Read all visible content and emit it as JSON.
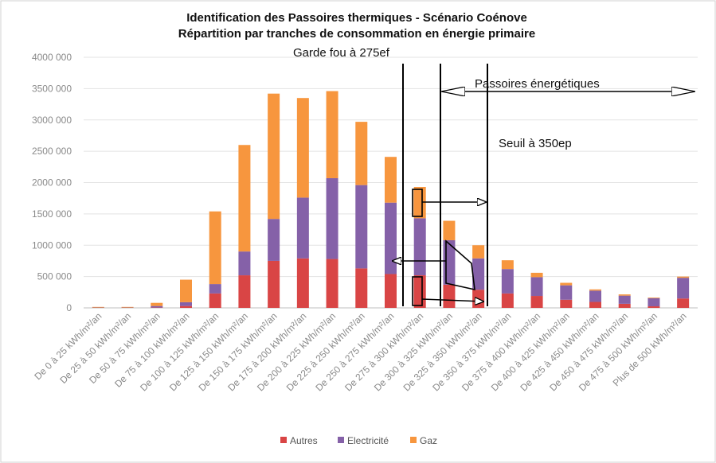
{
  "chart_data": {
    "type": "bar",
    "stacked": true,
    "title": "Identification des Passoires thermiques - Scénario Coénove",
    "subtitle": "Répartition par tranches de consommation en énergie primaire",
    "categories": [
      "De 0 à 25 kWh/m²/an",
      "De 25 à 50 kWh/m²/an",
      "De 50 à 75 kWh/m²/an",
      "De 75 à 100 kWh/m²/an",
      "De 100 à 125 kWh/m²/an",
      "De 125 à 150 kWh/m²/an",
      "De 150 à 175 kWh/m²/an",
      "De 175 à 200 kWh/m²/an",
      "De 200 à 225 kWh/m²/an",
      "De 225 à 250 kWh/m²/an",
      "De 250 à 275 kWh/m²/an",
      "De 275 à 300 kWh/m²/an",
      "De 300 à 325 kWh/m²/an",
      "De 325 à 350 kWh/m²/an",
      "De 350 à 375 kWh/m²/an",
      "De 375 à 400 kWh/m²/an",
      "De 400 à 425 kWh/m²/an",
      "De 425 à 450 kWh/m²/an",
      "De 450 à 475 kWh/m²/an",
      "De 475 à 500 kWh/m²/an",
      "Plus de 500 kWh/m²/an"
    ],
    "series": [
      {
        "name": "Autres",
        "color": "#d94545",
        "values": [
          0,
          0,
          5000,
          30000,
          230000,
          520000,
          750000,
          790000,
          780000,
          630000,
          540000,
          520000,
          370000,
          290000,
          230000,
          190000,
          130000,
          95000,
          65000,
          25000,
          150000
        ]
      },
      {
        "name": "Electricité",
        "color": "#8561a8",
        "values": [
          5000,
          5000,
          25000,
          60000,
          150000,
          380000,
          670000,
          970000,
          1290000,
          1330000,
          1140000,
          910000,
          710000,
          500000,
          390000,
          300000,
          230000,
          180000,
          130000,
          130000,
          330000
        ]
      },
      {
        "name": "Gaz",
        "color": "#f7963e",
        "values": [
          10000,
          10000,
          50000,
          360000,
          1160000,
          1700000,
          2000000,
          1590000,
          1390000,
          1010000,
          730000,
          500000,
          310000,
          210000,
          140000,
          70000,
          40000,
          20000,
          20000,
          10000,
          20000
        ]
      }
    ],
    "yticks": [
      "0",
      "500 000",
      "1000 000",
      "1500 000",
      "2000 000",
      "2500 000",
      "3000 000",
      "3500 000",
      "4000 000"
    ],
    "ylim": [
      0,
      4000000
    ],
    "grid": true,
    "legend_position": "bottom",
    "annotations": {
      "garde_fou": "Garde fou à 275ef",
      "passoires": "Passoires énergétiques",
      "seuil": "Seuil à 350ep"
    }
  }
}
